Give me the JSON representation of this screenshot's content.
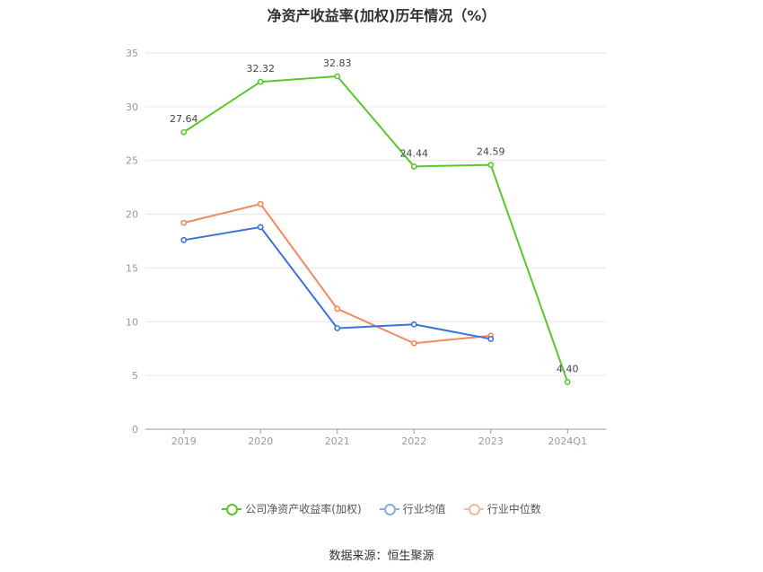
{
  "chart_data": {
    "type": "line",
    "title": "净资产收益率(加权)历年情况（%）",
    "categories": [
      "2019",
      "2020",
      "2021",
      "2022",
      "2023",
      "2024Q1"
    ],
    "ylim": [
      0,
      35
    ],
    "yticks": [
      0,
      5,
      10,
      15,
      20,
      25,
      30,
      35
    ],
    "grid": true,
    "legend_position": "bottom",
    "series": [
      {
        "name": "公司净资产收益率(加权)",
        "color": "#5cc72c",
        "values": [
          27.64,
          32.32,
          32.83,
          24.44,
          24.59,
          4.4
        ],
        "labels": [
          "27.64",
          "32.32",
          "32.83",
          "24.44",
          "24.59",
          "4.40"
        ]
      },
      {
        "name": "行业均值",
        "color": "#3a74d9",
        "values": [
          17.6,
          18.8,
          9.4,
          9.75,
          8.4,
          null
        ]
      },
      {
        "name": "行业中位数",
        "color": "#f08a5d",
        "values": [
          19.2,
          20.95,
          11.2,
          8.0,
          8.7,
          null
        ]
      }
    ]
  },
  "source": "数据来源：恒生聚源"
}
